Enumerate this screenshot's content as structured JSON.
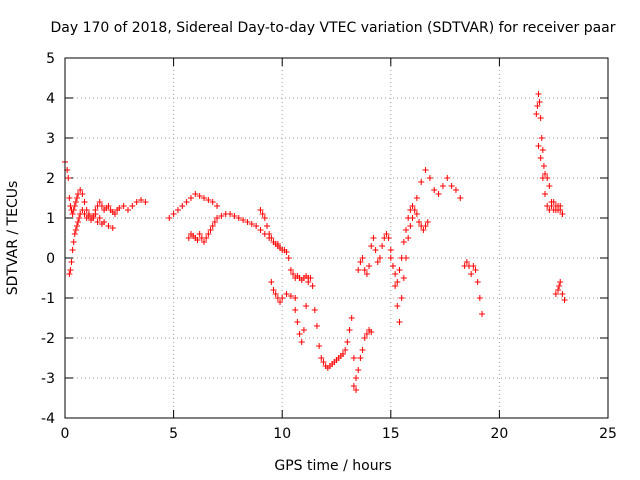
{
  "chart_data": {
    "type": "scatter",
    "title": "Day 170 of 2018, Sidereal Day-to-day VTEC variation (SDTVAR) for receiver paar",
    "xlabel": "GPS time / hours",
    "ylabel": "SDTVAR / TECUs",
    "xlim": [
      0,
      25
    ],
    "ylim": [
      -4,
      5
    ],
    "xticks": [
      "0",
      "5",
      "10",
      "15",
      "20",
      "25"
    ],
    "yticks": [
      "-4",
      "-3",
      "-2",
      "-1",
      "0",
      "1",
      "2",
      "3",
      "4",
      "5"
    ],
    "grid": true,
    "marker": "+",
    "color": "#ff0000",
    "series": [
      {
        "name": "SDTVAR",
        "x": [
          0.0,
          0.1,
          0.15,
          0.2,
          0.25,
          0.3,
          0.35,
          0.4,
          0.45,
          0.5,
          0.55,
          0.6,
          0.7,
          0.8,
          0.9,
          1.0,
          1.1,
          1.2,
          1.3,
          1.4,
          1.5,
          1.6,
          1.7,
          1.8,
          1.9,
          2.0,
          2.1,
          2.2,
          2.3,
          2.4,
          2.5,
          2.7,
          2.9,
          3.1,
          3.3,
          3.5,
          3.7,
          0.2,
          0.25,
          0.3,
          0.35,
          0.4,
          0.45,
          0.5,
          0.55,
          0.6,
          0.65,
          0.7,
          0.8,
          0.9,
          1.0,
          1.1,
          1.2,
          1.3,
          1.4,
          1.5,
          1.6,
          1.7,
          1.8,
          2.0,
          2.2,
          4.8,
          5.0,
          5.2,
          5.4,
          5.6,
          5.8,
          6.0,
          6.2,
          6.4,
          6.6,
          6.8,
          7.0,
          5.7,
          5.8,
          5.9,
          6.0,
          6.1,
          6.2,
          6.3,
          6.4,
          6.5,
          6.6,
          6.7,
          6.8,
          6.9,
          7.0,
          7.2,
          7.4,
          7.6,
          7.8,
          8.0,
          8.2,
          8.4,
          8.6,
          8.8,
          9.0,
          9.2,
          9.4,
          9.6,
          9.8,
          9.0,
          9.1,
          9.2,
          9.3,
          9.4,
          9.5,
          9.6,
          9.7,
          9.8,
          9.9,
          10.0,
          10.1,
          10.2,
          10.3,
          10.4,
          10.5,
          10.6,
          10.7,
          10.8,
          10.9,
          11.0,
          11.1,
          11.2,
          9.5,
          9.6,
          9.7,
          9.8,
          9.9,
          10.0,
          10.2,
          10.4,
          10.6,
          10.6,
          10.7,
          10.8,
          10.9,
          11.0,
          11.1,
          11.2,
          11.3,
          11.4,
          11.5,
          11.6,
          11.7,
          11.8,
          11.9,
          12.0,
          12.1,
          12.2,
          12.3,
          12.4,
          12.5,
          12.6,
          12.7,
          12.8,
          12.9,
          13.0,
          13.1,
          13.2,
          13.3,
          13.4,
          13.3,
          13.4,
          13.5,
          13.6,
          13.7,
          13.8,
          13.9,
          14.0,
          14.1,
          13.5,
          13.6,
          13.7,
          13.8,
          13.9,
          14.0,
          14.1,
          14.2,
          14.3,
          14.4,
          14.5,
          14.6,
          14.7,
          14.8,
          14.9,
          15.0,
          15.1,
          15.2,
          15.3,
          15.4,
          15.5,
          15.6,
          15.7,
          15.8,
          15.9,
          16.0,
          16.1,
          16.2,
          16.3,
          16.4,
          16.5,
          16.6,
          16.7,
          15.0,
          15.1,
          15.2,
          15.3,
          15.4,
          15.5,
          15.6,
          15.7,
          15.8,
          15.9,
          16.0,
          16.2,
          16.4,
          16.6,
          16.8,
          17.0,
          17.2,
          17.4,
          17.6,
          17.8,
          18.0,
          18.2,
          18.4,
          18.5,
          18.6,
          18.7,
          18.8,
          18.9,
          19.0,
          19.1,
          19.2,
          21.7,
          21.75,
          21.8,
          21.85,
          21.9,
          21.95,
          22.0,
          22.05,
          22.1,
          22.2,
          22.3,
          22.4,
          22.5,
          22.6,
          22.7,
          22.8,
          22.9,
          21.8,
          21.9,
          22.0,
          22.1,
          22.2,
          22.3,
          22.4,
          22.5,
          22.6,
          22.7,
          22.8,
          22.9,
          22.6,
          22.7,
          22.75,
          22.8,
          22.9,
          23.0
        ],
        "y": [
          2.4,
          2.2,
          2.0,
          1.5,
          1.3,
          1.2,
          1.1,
          1.2,
          1.3,
          1.4,
          1.5,
          1.6,
          1.7,
          1.6,
          1.4,
          1.2,
          1.1,
          1.0,
          1.05,
          1.2,
          1.3,
          1.4,
          1.3,
          1.2,
          1.25,
          1.3,
          1.2,
          1.15,
          1.1,
          1.2,
          1.25,
          1.3,
          1.2,
          1.3,
          1.4,
          1.45,
          1.4,
          -0.4,
          -0.3,
          -0.1,
          0.2,
          0.4,
          0.6,
          0.7,
          0.8,
          0.9,
          1.0,
          1.1,
          1.2,
          1.1,
          1.0,
          1.05,
          0.95,
          1.0,
          1.1,
          0.9,
          1.0,
          0.85,
          0.9,
          0.8,
          0.75,
          1.0,
          1.1,
          1.2,
          1.3,
          1.4,
          1.5,
          1.6,
          1.55,
          1.5,
          1.45,
          1.4,
          1.3,
          0.5,
          0.6,
          0.55,
          0.5,
          0.45,
          0.6,
          0.5,
          0.4,
          0.5,
          0.6,
          0.7,
          0.8,
          0.9,
          1.0,
          1.05,
          1.1,
          1.1,
          1.05,
          1.0,
          0.95,
          0.9,
          0.85,
          0.8,
          0.7,
          0.6,
          0.5,
          0.4,
          0.35,
          1.2,
          1.1,
          1.0,
          0.8,
          0.6,
          0.5,
          0.4,
          0.35,
          0.3,
          0.25,
          0.2,
          0.2,
          0.15,
          0.0,
          -0.3,
          -0.4,
          -0.5,
          -0.45,
          -0.5,
          -0.55,
          -0.5,
          -0.45,
          -0.5,
          -0.6,
          -0.8,
          -0.9,
          -1.0,
          -1.1,
          -1.0,
          -0.9,
          -0.95,
          -1.0,
          -1.3,
          -1.6,
          -1.9,
          -2.1,
          -1.8,
          -1.2,
          -0.6,
          -0.5,
          -0.7,
          -1.3,
          -1.7,
          -2.2,
          -2.5,
          -2.6,
          -2.7,
          -2.75,
          -2.7,
          -2.65,
          -2.6,
          -2.55,
          -2.5,
          -2.45,
          -2.4,
          -2.3,
          -2.1,
          -1.8,
          -1.5,
          -2.5,
          -3.3,
          -3.2,
          -3.0,
          -2.8,
          -2.5,
          -2.3,
          -2.0,
          -1.9,
          -1.8,
          -1.85,
          -0.3,
          -0.1,
          0.0,
          -0.3,
          -0.4,
          -0.2,
          0.3,
          0.5,
          0.2,
          -0.1,
          0.0,
          0.3,
          0.5,
          0.6,
          0.5,
          0.2,
          -0.2,
          -0.7,
          -1.2,
          -1.6,
          -1.0,
          -0.5,
          0.0,
          0.5,
          0.8,
          1.0,
          1.2,
          1.1,
          0.9,
          0.8,
          0.7,
          0.8,
          0.9,
          0.0,
          -0.2,
          -0.4,
          -0.6,
          -0.3,
          0.0,
          0.4,
          0.7,
          1.0,
          1.2,
          1.3,
          1.5,
          1.9,
          2.2,
          2.0,
          1.7,
          1.6,
          1.8,
          2.0,
          1.8,
          1.7,
          1.5,
          -0.2,
          -0.1,
          -0.2,
          -0.4,
          -0.2,
          -0.3,
          -0.6,
          -1.0,
          -1.4,
          3.6,
          3.8,
          4.1,
          3.9,
          3.5,
          3.0,
          2.7,
          2.3,
          2.1,
          2.0,
          1.8,
          1.4,
          1.2,
          1.3,
          1.2,
          1.3,
          1.1,
          2.8,
          2.5,
          2.0,
          1.6,
          1.3,
          1.2,
          1.3,
          1.4,
          1.2,
          1.3,
          1.2,
          1.1,
          -0.9,
          -0.8,
          -0.7,
          -0.6,
          -0.9,
          -1.05
        ]
      }
    ]
  }
}
